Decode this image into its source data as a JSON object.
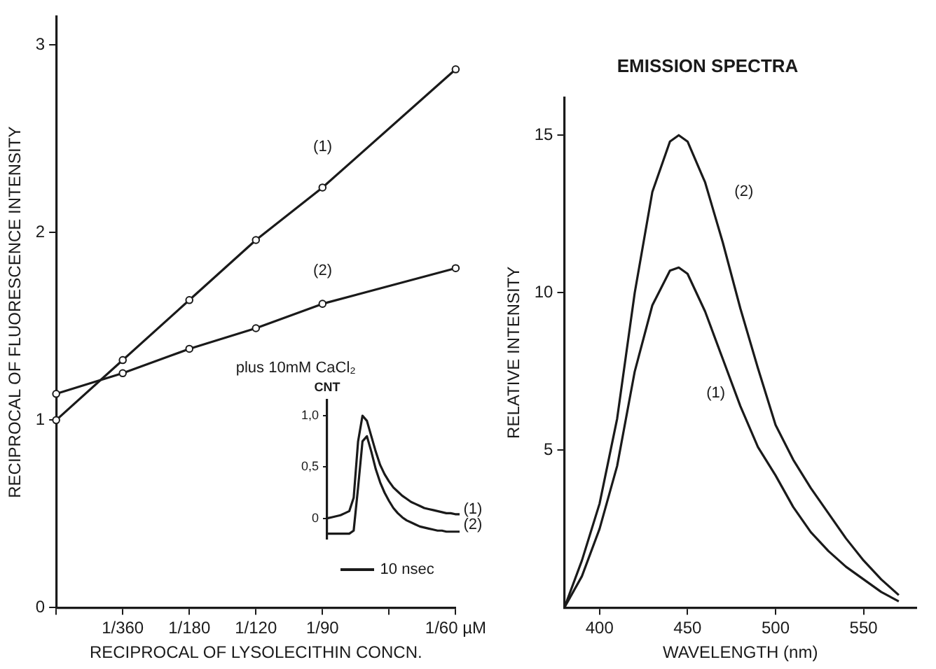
{
  "chart_data": [
    {
      "type": "line",
      "xlabel": "RECIPROCAL OF LYSOLECITHIN CONCN.",
      "ylabel": "RECIPROCAL OF FLUORESCENCE INTENSITY",
      "marker": "circle",
      "ylim": [
        0,
        3.15
      ],
      "yticks": [
        0,
        1,
        2,
        3
      ],
      "categories": [
        null,
        "1/360",
        "1/180",
        "1/120",
        "1/90",
        null,
        "1/60 µM"
      ],
      "series": [
        {
          "color": "#1a1a1a",
          "values": [
            1.0,
            1.32,
            1.64,
            1.96,
            2.24,
            null,
            2.87
          ]
        },
        {
          "color": "#1a1a1a",
          "values": [
            1.14,
            1.25,
            1.38,
            1.49,
            1.62,
            null,
            1.81
          ]
        }
      ],
      "annotations": [
        "(1)",
        "(2)",
        "plus 10mM CaCl₂"
      ]
    },
    {
      "type": "line",
      "ylabel": "CNT",
      "tick_labels": "y",
      "ylim": [
        -0.2,
        1.15
      ],
      "yticks": [
        0,
        {
          "value": 0.5,
          "label": "0,5"
        },
        {
          "value": 1.0,
          "label": "1,0"
        }
      ],
      "categories": [
        null,
        null,
        null,
        null,
        null,
        null,
        null,
        null,
        null,
        null,
        null,
        null,
        null,
        null,
        null,
        null,
        null,
        null,
        null,
        null,
        null,
        null,
        null,
        null,
        null,
        null,
        null,
        null,
        null,
        null,
        null
      ],
      "series": [
        {
          "color": "#1a1a1a",
          "values": [
            0,
            0.01,
            0.02,
            0.03,
            0.05,
            0.07,
            0.2,
            0.75,
            1.0,
            0.95,
            0.8,
            0.65,
            0.52,
            0.43,
            0.36,
            0.3,
            0.26,
            0.22,
            0.19,
            0.16,
            0.14,
            0.12,
            0.1,
            0.09,
            0.08,
            0.07,
            0.06,
            0.05,
            0.05,
            0.04,
            0.04
          ]
        },
        {
          "color": "#1a1a1a",
          "values": [
            -0.15,
            -0.15,
            -0.15,
            -0.15,
            -0.15,
            -0.15,
            -0.12,
            0.3,
            0.75,
            0.8,
            0.65,
            0.48,
            0.35,
            0.25,
            0.17,
            0.1,
            0.05,
            0.01,
            -0.02,
            -0.04,
            -0.06,
            -0.08,
            -0.09,
            -0.1,
            -0.11,
            -0.12,
            -0.12,
            -0.13,
            -0.13,
            -0.13,
            -0.13
          ]
        }
      ],
      "annotations": [
        "(1)",
        "(2)",
        "10 nsec"
      ]
    },
    {
      "type": "line",
      "title": "EMISSION SPECTRA",
      "xlabel": "WAVELENGTH (nm)",
      "ylabel": "RELATIVE INTENSITY",
      "xlim": [
        380,
        580
      ],
      "ylim": [
        0,
        16.2
      ],
      "xticks": [
        400,
        450,
        500,
        550
      ],
      "yticks": [
        5,
        10,
        15
      ],
      "x": [
        380,
        390,
        400,
        410,
        420,
        430,
        440,
        445,
        450,
        460,
        470,
        480,
        490,
        500,
        510,
        520,
        530,
        540,
        550,
        560,
        570
      ],
      "series": [
        {
          "color": "#1a1a1a",
          "values": [
            0,
            1.0,
            2.5,
            4.5,
            7.5,
            9.6,
            10.7,
            10.8,
            10.6,
            9.4,
            7.9,
            6.4,
            5.1,
            4.2,
            3.2,
            2.4,
            1.8,
            1.3,
            0.9,
            0.5,
            0.2
          ]
        },
        {
          "color": "#1a1a1a",
          "values": [
            0,
            1.5,
            3.3,
            6.0,
            10.0,
            13.2,
            14.8,
            15.0,
            14.8,
            13.5,
            11.6,
            9.5,
            7.6,
            5.8,
            4.7,
            3.8,
            3.0,
            2.2,
            1.5,
            0.9,
            0.4
          ]
        }
      ],
      "annotations": [
        "(2)",
        "(1)"
      ]
    }
  ]
}
